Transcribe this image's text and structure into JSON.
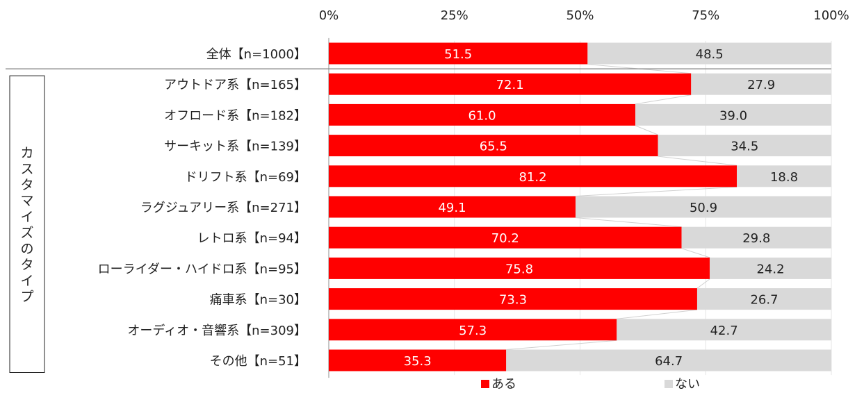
{
  "chart_data": {
    "type": "bar",
    "orientation": "horizontal",
    "stacked": true,
    "percent_stacked": true,
    "xlim": [
      0,
      100
    ],
    "x_ticks": [
      "0%",
      "25%",
      "50%",
      "75%",
      "100%"
    ],
    "group_label": "カスタマイズのタイプ",
    "overall_category": "全体【n=1000】",
    "categories": [
      "全体【n=1000】",
      "アウトドア系【n=165】",
      "オフロード系【n=182】",
      "サーキット系【n=139】",
      "ドリフト系【n=69】",
      "ラグジュアリー系【n=271】",
      "レトロ系【n=94】",
      "ローライダー・ハイドロ系【n=95】",
      "痛車系【n=30】",
      "オーディオ・音響系【n=309】",
      "その他【n=51】"
    ],
    "series": [
      {
        "name": "ある",
        "color": "#ff0000",
        "label_color": "#ffffff",
        "values": [
          51.5,
          72.1,
          61.0,
          65.5,
          81.2,
          49.1,
          70.2,
          75.8,
          73.3,
          57.3,
          35.3
        ]
      },
      {
        "name": "ない",
        "color": "#d9d9d9",
        "label_color": "#222222",
        "values": [
          48.5,
          27.9,
          39.0,
          34.5,
          18.8,
          50.9,
          29.8,
          24.2,
          26.7,
          42.7,
          64.7
        ]
      }
    ],
    "legend_position": "bottom",
    "grid": true
  }
}
